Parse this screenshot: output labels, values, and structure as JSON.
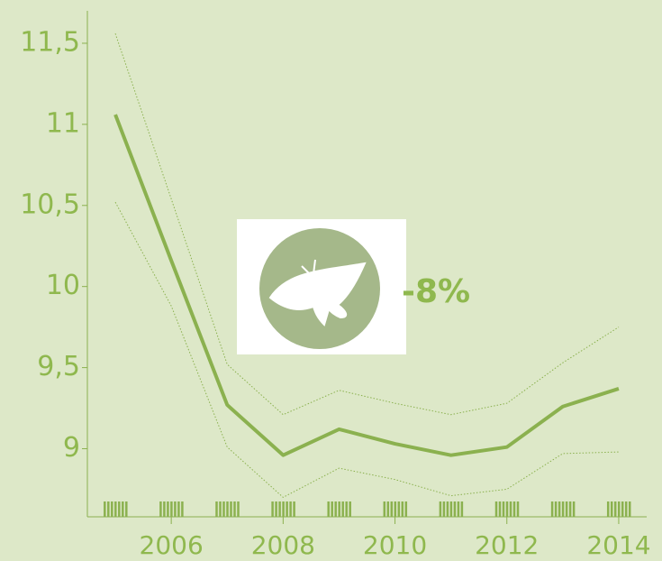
{
  "chart_data": {
    "type": "line",
    "x": [
      2005,
      2006,
      2007,
      2008,
      2009,
      2010,
      2011,
      2012,
      2013,
      2014
    ],
    "series": [
      {
        "name": "upper",
        "color": "#8bb14f",
        "line_style": "dotted",
        "values": [
          11.56,
          10.54,
          9.52,
          9.21,
          9.36,
          9.28,
          9.21,
          9.28,
          9.53,
          9.75
        ]
      },
      {
        "name": "value",
        "color": "#8bb14f",
        "line_style": "solid",
        "values": [
          11.06,
          10.16,
          9.27,
          8.96,
          9.12,
          9.03,
          8.96,
          9.01,
          9.26,
          9.37
        ]
      },
      {
        "name": "lower",
        "color": "#8bb14f",
        "line_style": "dotted",
        "values": [
          10.52,
          9.88,
          9.01,
          8.7,
          8.88,
          8.81,
          8.71,
          8.75,
          8.97,
          8.98
        ]
      }
    ],
    "xlim": [
      2004.5,
      2014.5
    ],
    "xticks": [
      2006,
      2008,
      2010,
      2012,
      2014
    ],
    "ylim": [
      8.58,
      11.7
    ],
    "yticks": [
      {
        "value": 9,
        "label": "9"
      },
      {
        "value": 9.5,
        "label": "9,5"
      },
      10,
      {
        "value": 10.5,
        "label": "10,5"
      },
      11,
      {
        "value": 11.5,
        "label": "11,5"
      }
    ],
    "annotation": "-8%"
  }
}
